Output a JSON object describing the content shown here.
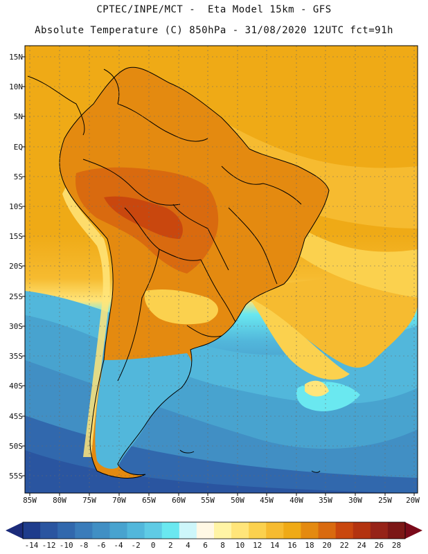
{
  "header": {
    "line1": "CPTEC/INPE/MCT -  Eta Model 15km - GFS",
    "line2": "Absolute Temperature (C) 850hPa - 31/08/2020 12UTC fct=91h"
  },
  "map": {
    "lat_labels": [
      "15N",
      "10N",
      "5N",
      "EQ",
      "5S",
      "10S",
      "15S",
      "20S",
      "25S",
      "30S",
      "35S",
      "40S",
      "45S",
      "50S",
      "55S"
    ],
    "lon_labels": [
      "85W",
      "80W",
      "75W",
      "70W",
      "65W",
      "60W",
      "55W",
      "50W",
      "45W",
      "40W",
      "35W",
      "30W",
      "25W",
      "20W"
    ],
    "colors": {
      "sea_warm": "#efaa16",
      "land_hot": "#d87830",
      "ocean_cold": "#3b9dc9",
      "coast": "#000000",
      "grid": "#555555"
    }
  },
  "colorbar": {
    "labels": [
      "-14",
      "-12",
      "-10",
      "-8",
      "-6",
      "-4",
      "-2",
      "0",
      "2",
      "4",
      "6",
      "8",
      "10",
      "12",
      "14",
      "16",
      "18",
      "20",
      "22",
      "24",
      "26",
      "28"
    ],
    "colors": [
      "#1e3c8c",
      "#2a55a0",
      "#3168ad",
      "#3a7cba",
      "#418fc4",
      "#48a3cf",
      "#52b7db",
      "#5fcbe5",
      "#6ae8f0",
      "#cdf6fa",
      "#fff8e5",
      "#fff4a5",
      "#ffe57a",
      "#fbd14e",
      "#f6bb30",
      "#efaa16",
      "#e48a10",
      "#d96a0f",
      "#c9470e",
      "#b3330f",
      "#962318",
      "#7c1716"
    ],
    "low_arrow_color": "#1b2b7a",
    "high_arrow_color": "#7a0a1a"
  }
}
